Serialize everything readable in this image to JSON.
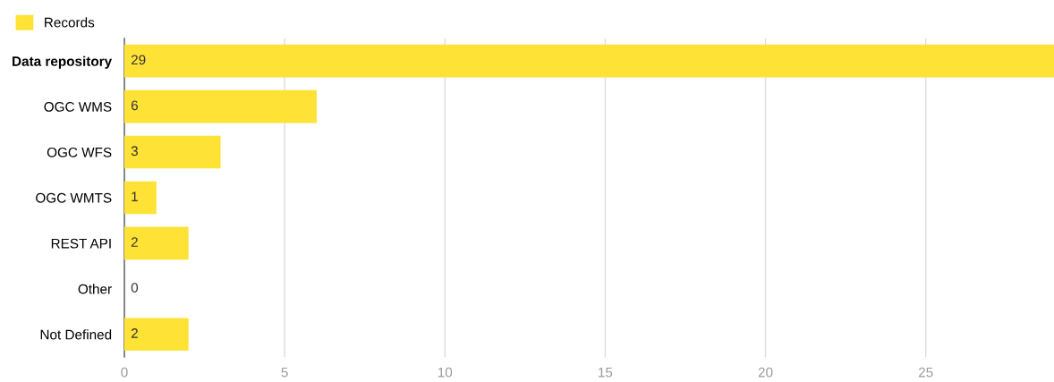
{
  "chart_data": {
    "type": "bar",
    "orientation": "horizontal",
    "categories": [
      "Data repository",
      "OGC WMS",
      "OGC WFS",
      "OGC WMTS",
      "REST API",
      "Other",
      "Not Defined"
    ],
    "series": [
      {
        "name": "Records",
        "color": "#ffe236",
        "values": [
          29,
          6,
          3,
          1,
          2,
          0,
          2
        ]
      }
    ],
    "xlim": [
      0,
      29
    ],
    "xticks": [
      0,
      5,
      10,
      15,
      20,
      25
    ],
    "grid": "x",
    "legend": "top left",
    "data_labels": true
  }
}
